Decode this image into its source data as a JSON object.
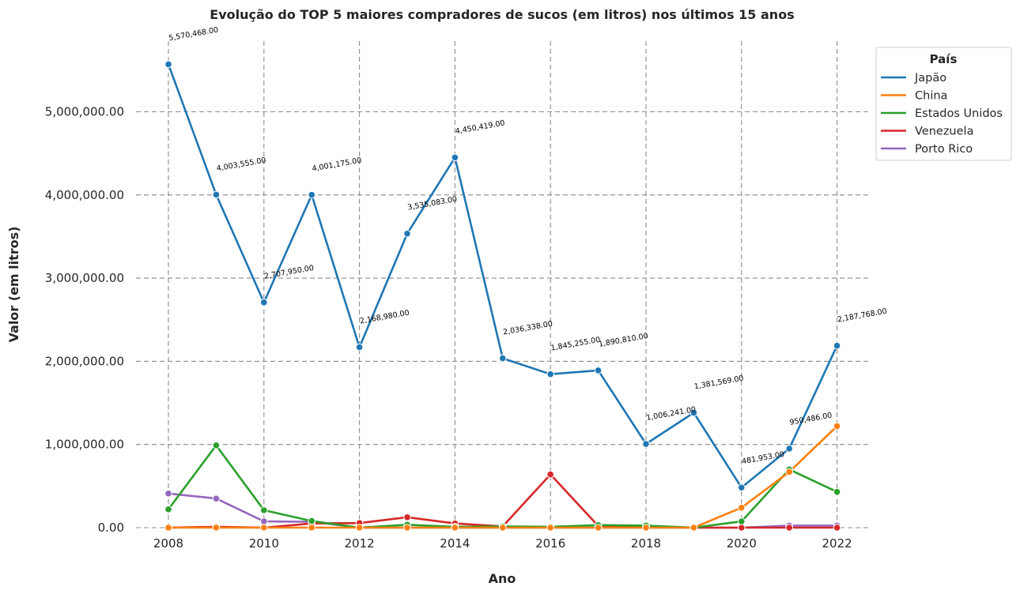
{
  "chart_data": {
    "type": "line",
    "title": "Evolução do TOP 5 maiores compradores de sucos (em litros) nos últimos 15 anos",
    "xlabel": "Ano",
    "ylabel": "Valor (em litros)",
    "x": [
      2008,
      2009,
      2010,
      2011,
      2012,
      2013,
      2014,
      2015,
      2016,
      2017,
      2018,
      2019,
      2020,
      2021,
      2022
    ],
    "xticks": [
      2008,
      2010,
      2012,
      2014,
      2016,
      2018,
      2020,
      2022
    ],
    "xtick_labels": [
      "2008",
      "2010",
      "2012",
      "2014",
      "2016",
      "2018",
      "2020",
      "2022"
    ],
    "yticks": [
      0,
      1000000,
      2000000,
      3000000,
      4000000,
      5000000
    ],
    "ytick_labels": [
      "0.00",
      "1,000,000.00",
      "2,000,000.00",
      "3,000,000.00",
      "4,000,000.00",
      "5,000,000.00"
    ],
    "xlim": [
      2007.4,
      2022.7
    ],
    "ylim": [
      0,
      5900000
    ],
    "grid": true,
    "legend": {
      "title": "País",
      "position": "top-right, outside plot"
    },
    "series": [
      {
        "name": "Japão",
        "color": "#1f77b4",
        "values": [
          5570468,
          4003555,
          2707950,
          4001175,
          2168980,
          3535083,
          4450419,
          2036338,
          1845255,
          1890810,
          1006241,
          1381569,
          481953,
          950486,
          2187768
        ]
      },
      {
        "name": "China",
        "color": "#ff7f0e",
        "values": [
          0,
          0,
          0,
          0,
          0,
          0,
          0,
          0,
          0,
          0,
          0,
          0,
          240000,
          670000,
          1220000
        ]
      },
      {
        "name": "Estados Unidos",
        "color": "#2ca02c",
        "values": [
          220000,
          990000,
          210000,
          80000,
          0,
          35000,
          10000,
          15000,
          10000,
          30000,
          25000,
          0,
          75000,
          700000,
          430000
        ]
      },
      {
        "name": "Venezuela",
        "color": "#d62728",
        "values": [
          0,
          10000,
          0,
          50000,
          55000,
          125000,
          50000,
          15000,
          640000,
          20000,
          10000,
          0,
          0,
          0,
          0
        ]
      },
      {
        "name": "Porto Rico",
        "color": "#9467bd",
        "values": [
          410000,
          350000,
          75000,
          70000,
          0,
          0,
          0,
          0,
          0,
          0,
          0,
          0,
          0,
          25000,
          25000
        ]
      }
    ],
    "data_labels": {
      "series": "Japão",
      "labels": [
        "5,570,468.00",
        "4,003,555.00",
        "2,707,950.00",
        "4,001,175.00",
        "2,168,980.00",
        "3,535,083.00",
        "4,450,419.00",
        "2,036,338.00",
        "1,845,255.00",
        "1,890,810.00",
        "1,006,241.00",
        "1,381,569.00",
        "481,953.00",
        "950,486.00",
        "2,187,768.00"
      ]
    }
  }
}
